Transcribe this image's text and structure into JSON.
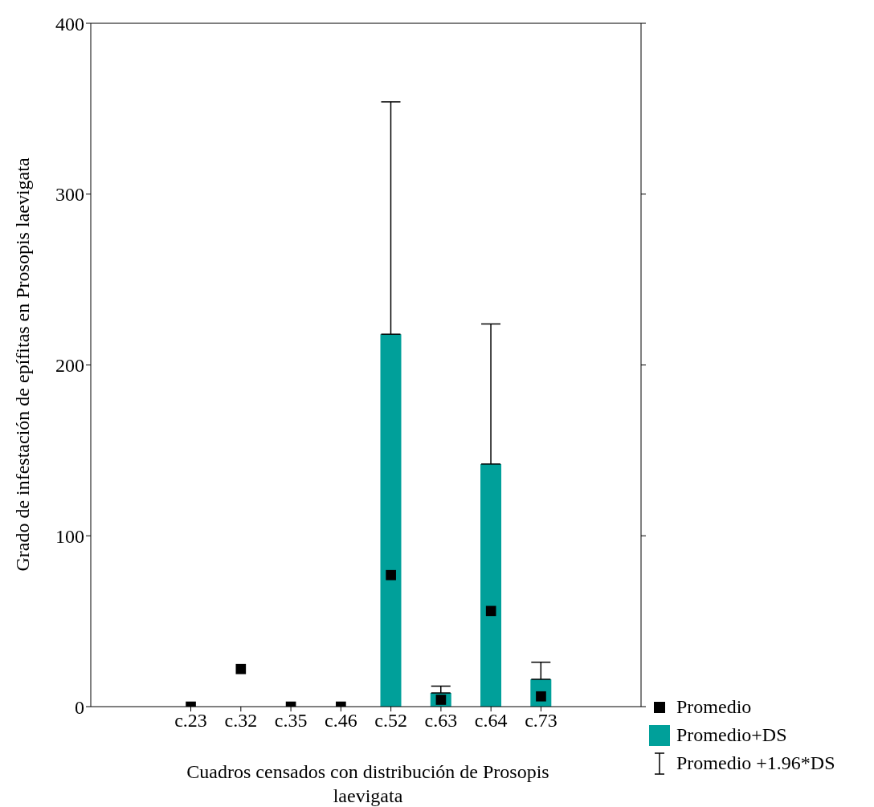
{
  "chart_data": {
    "type": "bar",
    "xlabel": "Cuadros censados con distribución de Prosopis laevigata",
    "ylabel": "Grado de infestación de epífitas en Prosopis laevigata",
    "categories": [
      "c.23",
      "c.32",
      "c.35",
      "c.46",
      "c.52",
      "c.63",
      "c.64",
      "c.73"
    ],
    "series": [
      {
        "name": "Promedio+DS",
        "color": "#00a09a",
        "values": [
          null,
          null,
          null,
          null,
          218,
          8,
          142,
          16
        ],
        "errors": [
          null,
          null,
          null,
          null,
          [
            218,
            354
          ],
          [
            8,
            12
          ],
          [
            142,
            224
          ],
          [
            16,
            26
          ]
        ]
      },
      {
        "name": "Promedio",
        "type": "scatter",
        "color": "#000000",
        "marker": "square",
        "values": [
          0,
          22,
          0,
          0,
          77,
          4,
          56,
          6
        ]
      }
    ],
    "annotations": [
      "Promedio +1.96*DS"
    ],
    "ylim": [
      0,
      400
    ],
    "yticks": [
      0,
      100,
      200,
      300,
      400
    ],
    "legend": "bottom right"
  }
}
